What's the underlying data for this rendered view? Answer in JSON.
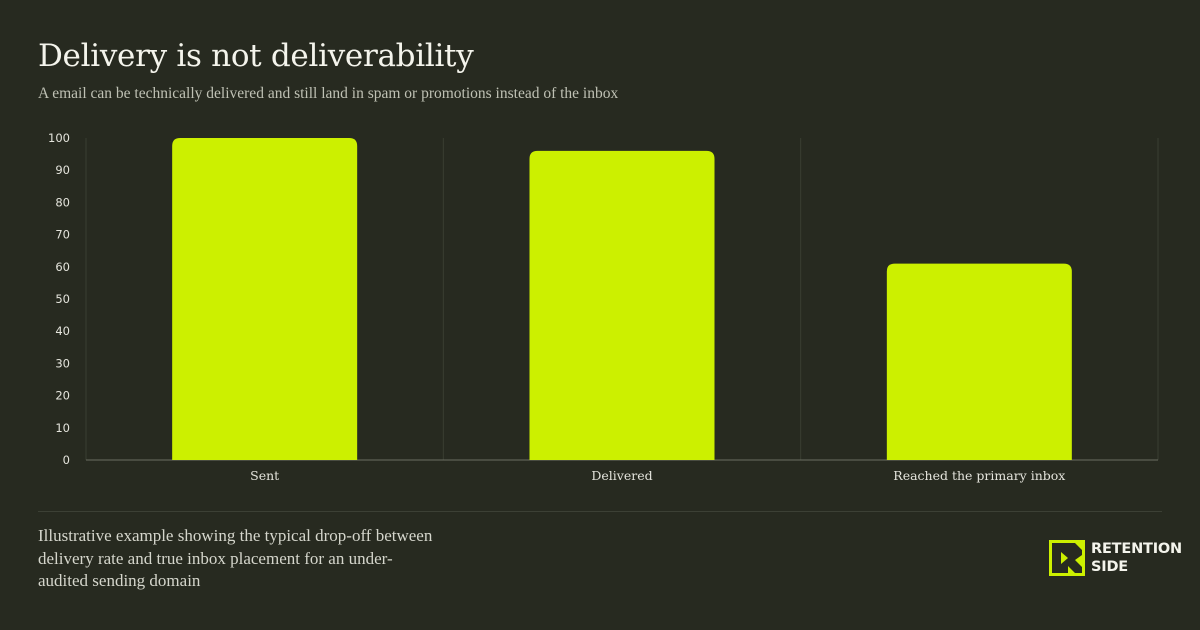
{
  "header": {
    "title": "Delivery is not deliverability",
    "subtitle": "A email can be technically delivered and still land in spam or promotions instead of the inbox"
  },
  "chart_data": {
    "type": "bar",
    "categories": [
      "Sent",
      "Delivered",
      "Reached the primary inbox"
    ],
    "values": [
      100,
      96,
      61
    ],
    "title": "",
    "xlabel": "",
    "ylabel": "",
    "ylim": [
      0,
      100
    ],
    "yticks": [
      0,
      10,
      20,
      30,
      40,
      50,
      60,
      70,
      80,
      90,
      100
    ],
    "grid": true,
    "legend": "none",
    "bar_color": "#ccf000"
  },
  "footer": {
    "footnote": "Illustrative example showing the typical drop-off between delivery rate and true inbox placement for an under-audited sending domain"
  },
  "brand": {
    "line1": "RETENTION",
    "line2": "SIDE",
    "logo_icon": "retention-side-logo-icon",
    "logo_color": "#ccf000"
  },
  "colors": {
    "background": "#272a20",
    "accent": "#ccf000",
    "text": "#f4f4ec"
  }
}
